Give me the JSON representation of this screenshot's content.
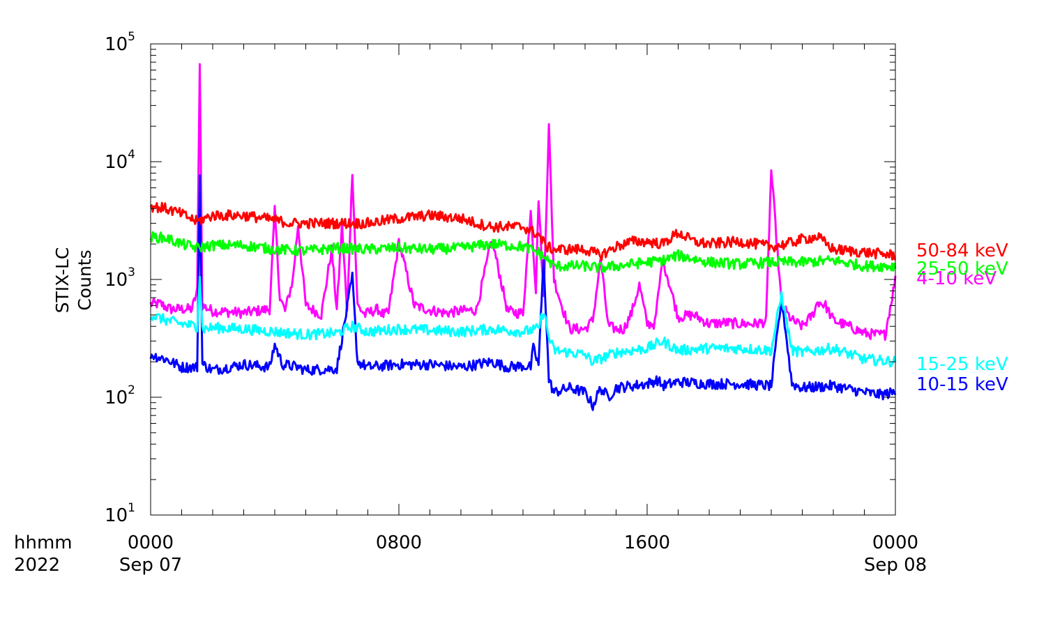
{
  "chart_data": {
    "type": "line",
    "ylabel_lines": [
      "STIX-LC",
      "Counts"
    ],
    "yscale": "log",
    "ylim": [
      10,
      100000
    ],
    "y_ticks": [
      {
        "base": "10",
        "exp": "1",
        "value": 10
      },
      {
        "base": "10",
        "exp": "2",
        "value": 100
      },
      {
        "base": "10",
        "exp": "3",
        "value": 1000
      },
      {
        "base": "10",
        "exp": "4",
        "value": 10000
      },
      {
        "base": "10",
        "exp": "5",
        "value": 100000
      }
    ],
    "xlim": [
      "2022-09-07 00:00",
      "2022-09-08 00:00"
    ],
    "x_row_labels": {
      "time": "hhmm",
      "year": "2022"
    },
    "x_ticks": [
      {
        "time": "0000",
        "date": "Sep 07",
        "value": "2022-09-07 00:00"
      },
      {
        "time": "0800",
        "date": "",
        "value": "2022-09-07 08:00"
      },
      {
        "time": "1600",
        "date": "",
        "value": "2022-09-07 16:00"
      },
      {
        "time": "0000",
        "date": "Sep 08",
        "value": "2022-09-08 00:00"
      }
    ],
    "grid": false,
    "legend_placement": "right",
    "series": [
      {
        "name": "4-10 keV",
        "color": "#ff00ff",
        "x": [
          "2022-09-07 00:00",
          "2022-09-07 00:20",
          "2022-09-07 00:30",
          "2022-09-07 00:40",
          "2022-09-07 01:00",
          "2022-09-07 01:20",
          "2022-09-07 01:30",
          "2022-09-07 01:35",
          "2022-09-07 01:40",
          "2022-09-07 02:00",
          "2022-09-07 03:00",
          "2022-09-07 03:50",
          "2022-09-07 04:00",
          "2022-09-07 04:10",
          "2022-09-07 04:20",
          "2022-09-07 04:35",
          "2022-09-07 04:45",
          "2022-09-07 05:00",
          "2022-09-07 05:30",
          "2022-09-07 05:50",
          "2022-09-07 06:00",
          "2022-09-07 06:10",
          "2022-09-07 06:20",
          "2022-09-07 06:30",
          "2022-09-07 06:40",
          "2022-09-07 06:55",
          "2022-09-07 07:00",
          "2022-09-07 07:20",
          "2022-09-07 07:30",
          "2022-09-07 07:40",
          "2022-09-07 08:00",
          "2022-09-07 08:30",
          "2022-09-07 09:00",
          "2022-09-07 09:30",
          "2022-09-07 10:00",
          "2022-09-07 10:30",
          "2022-09-07 11:00",
          "2022-09-07 11:30",
          "2022-09-07 11:50",
          "2022-09-07 12:00",
          "2022-09-07 12:15",
          "2022-09-07 12:25",
          "2022-09-07 12:30",
          "2022-09-07 12:40",
          "2022-09-07 12:50",
          "2022-09-07 13:00",
          "2022-09-07 13:15",
          "2022-09-07 13:30",
          "2022-09-07 14:00",
          "2022-09-07 14:15",
          "2022-09-07 14:30",
          "2022-09-07 14:45",
          "2022-09-07 15:00",
          "2022-09-07 15:15",
          "2022-09-07 15:30",
          "2022-09-07 15:45",
          "2022-09-07 16:00",
          "2022-09-07 16:15",
          "2022-09-07 16:30",
          "2022-09-07 17:00",
          "2022-09-07 17:30",
          "2022-09-07 18:00",
          "2022-09-07 18:30",
          "2022-09-07 19:00",
          "2022-09-07 19:30",
          "2022-09-07 19:50",
          "2022-09-07 20:00",
          "2022-09-07 20:20",
          "2022-09-07 20:40",
          "2022-09-07 21:00",
          "2022-09-07 21:20",
          "2022-09-07 21:30",
          "2022-09-07 21:45",
          "2022-09-07 22:00",
          "2022-09-07 22:30",
          "2022-09-07 23:00",
          "2022-09-07 23:20",
          "2022-09-07 23:40",
          "2022-09-08 00:00"
        ],
        "y": [
          620,
          620,
          580,
          560,
          560,
          560,
          800,
          73000,
          600,
          540,
          520,
          560,
          3800,
          700,
          540,
          1000,
          2900,
          600,
          500,
          1800,
          550,
          2900,
          520,
          8500,
          600,
          500,
          520,
          560,
          500,
          520,
          2100,
          600,
          550,
          520,
          540,
          550,
          2200,
          540,
          520,
          520,
          4000,
          800,
          5000,
          700,
          20000,
          1000,
          600,
          380,
          380,
          450,
          1500,
          400,
          380,
          380,
          520,
          900,
          420,
          420,
          1500,
          480,
          500,
          420,
          430,
          420,
          420,
          440,
          8500,
          600,
          450,
          400,
          500,
          650,
          600,
          450,
          400,
          350,
          340,
          340,
          1000
        ]
      },
      {
        "name": "10-15 keV",
        "color": "#0000ff",
        "x": [
          "2022-09-07 00:00",
          "2022-09-07 00:30",
          "2022-09-07 01:00",
          "2022-09-07 01:30",
          "2022-09-07 01:35",
          "2022-09-07 01:40",
          "2022-09-07 02:00",
          "2022-09-07 03:00",
          "2022-09-07 03:50",
          "2022-09-07 04:00",
          "2022-09-07 04:15",
          "2022-09-07 04:45",
          "2022-09-07 05:00",
          "2022-09-07 06:00",
          "2022-09-07 06:30",
          "2022-09-07 06:40",
          "2022-09-07 07:00",
          "2022-09-07 08:00",
          "2022-09-07 09:00",
          "2022-09-07 10:00",
          "2022-09-07 11:00",
          "2022-09-07 11:30",
          "2022-09-07 12:00",
          "2022-09-07 12:15",
          "2022-09-07 12:20",
          "2022-09-07 12:30",
          "2022-09-07 12:40",
          "2022-09-07 12:50",
          "2022-09-07 13:00",
          "2022-09-07 13:30",
          "2022-09-07 14:00",
          "2022-09-07 14:15",
          "2022-09-07 14:30",
          "2022-09-07 14:45",
          "2022-09-07 15:00",
          "2022-09-07 16:00",
          "2022-09-07 16:20",
          "2022-09-07 16:30",
          "2022-09-07 17:00",
          "2022-09-07 18:00",
          "2022-09-07 19:00",
          "2022-09-07 20:00",
          "2022-09-07 20:20",
          "2022-09-07 20:40",
          "2022-09-07 21:00",
          "2022-09-07 22:00",
          "2022-09-07 23:00",
          "2022-09-07 23:30",
          "2022-09-08 00:00"
        ],
        "y": [
          230,
          210,
          180,
          180,
          7500,
          190,
          170,
          190,
          180,
          280,
          190,
          180,
          170,
          175,
          1050,
          200,
          180,
          190,
          190,
          180,
          200,
          180,
          185,
          180,
          260,
          190,
          1500,
          140,
          110,
          120,
          110,
          85,
          120,
          100,
          120,
          130,
          140,
          125,
          135,
          130,
          130,
          125,
          700,
          130,
          120,
          125,
          110,
          105,
          110
        ]
      },
      {
        "name": "15-25 keV",
        "color": "#00ffff",
        "x": [
          "2022-09-07 00:00",
          "2022-09-07 00:30",
          "2022-09-07 01:00",
          "2022-09-07 01:30",
          "2022-09-07 01:35",
          "2022-09-07 01:40",
          "2022-09-07 02:00",
          "2022-09-07 03:00",
          "2022-09-07 04:00",
          "2022-09-07 05:00",
          "2022-09-07 06:00",
          "2022-09-07 06:30",
          "2022-09-07 07:00",
          "2022-09-07 08:00",
          "2022-09-07 09:00",
          "2022-09-07 10:00",
          "2022-09-07 11:00",
          "2022-09-07 12:00",
          "2022-09-07 12:30",
          "2022-09-07 12:40",
          "2022-09-07 12:50",
          "2022-09-07 13:00",
          "2022-09-07 14:00",
          "2022-09-07 14:15",
          "2022-09-07 15:00",
          "2022-09-07 16:00",
          "2022-09-07 16:30",
          "2022-09-07 17:00",
          "2022-09-07 18:00",
          "2022-09-07 19:00",
          "2022-09-07 20:00",
          "2022-09-07 20:20",
          "2022-09-07 20:40",
          "2022-09-07 21:00",
          "2022-09-07 22:00",
          "2022-09-07 23:00",
          "2022-09-08 00:00"
        ],
        "y": [
          500,
          450,
          420,
          400,
          1100,
          380,
          390,
          380,
          360,
          340,
          350,
          400,
          360,
          380,
          370,
          360,
          380,
          360,
          380,
          550,
          320,
          250,
          230,
          200,
          240,
          260,
          300,
          250,
          260,
          260,
          250,
          750,
          250,
          240,
          260,
          210,
          200
        ]
      },
      {
        "name": "25-50 keV",
        "color": "#00ff00",
        "x": [
          "2022-09-07 00:00",
          "2022-09-07 00:30",
          "2022-09-07 01:00",
          "2022-09-07 01:30",
          "2022-09-07 02:00",
          "2022-09-07 03:00",
          "2022-09-07 04:00",
          "2022-09-07 05:00",
          "2022-09-07 06:00",
          "2022-09-07 07:00",
          "2022-09-07 08:00",
          "2022-09-07 09:00",
          "2022-09-07 10:00",
          "2022-09-07 11:00",
          "2022-09-07 12:00",
          "2022-09-07 12:30",
          "2022-09-07 12:45",
          "2022-09-07 13:00",
          "2022-09-07 14:00",
          "2022-09-07 14:30",
          "2022-09-07 15:00",
          "2022-09-07 16:00",
          "2022-09-07 16:30",
          "2022-09-07 17:00",
          "2022-09-07 18:00",
          "2022-09-07 19:00",
          "2022-09-07 20:00",
          "2022-09-07 21:00",
          "2022-09-07 22:00",
          "2022-09-07 23:00",
          "2022-09-08 00:00"
        ],
        "y": [
          2300,
          2250,
          2000,
          1850,
          1950,
          1950,
          1800,
          1750,
          1850,
          1800,
          1850,
          1800,
          1850,
          2000,
          1900,
          1700,
          1500,
          1300,
          1300,
          1250,
          1300,
          1400,
          1450,
          1600,
          1400,
          1350,
          1400,
          1400,
          1450,
          1300,
          1300
        ]
      },
      {
        "name": "50-84 keV",
        "color": "#ff0000",
        "x": [
          "2022-09-07 00:00",
          "2022-09-07 00:30",
          "2022-09-07 01:00",
          "2022-09-07 01:30",
          "2022-09-07 02:00",
          "2022-09-07 03:00",
          "2022-09-07 04:00",
          "2022-09-07 04:30",
          "2022-09-07 05:00",
          "2022-09-07 06:00",
          "2022-09-07 07:00",
          "2022-09-07 08:00",
          "2022-09-07 09:00",
          "2022-09-07 10:00",
          "2022-09-07 10:30",
          "2022-09-07 11:00",
          "2022-09-07 12:00",
          "2022-09-07 12:30",
          "2022-09-07 12:45",
          "2022-09-07 13:00",
          "2022-09-07 14:00",
          "2022-09-07 14:30",
          "2022-09-07 15:00",
          "2022-09-07 15:30",
          "2022-09-07 16:00",
          "2022-09-07 16:30",
          "2022-09-07 17:00",
          "2022-09-07 17:30",
          "2022-09-07 18:00",
          "2022-09-07 19:00",
          "2022-09-07 20:00",
          "2022-09-07 20:30",
          "2022-09-07 21:00",
          "2022-09-07 21:30",
          "2022-09-07 22:00",
          "2022-09-07 23:00",
          "2022-09-08 00:00"
        ],
        "y": [
          4200,
          4000,
          3600,
          3100,
          3500,
          3500,
          3200,
          3000,
          3000,
          3000,
          3000,
          3300,
          3500,
          3300,
          3000,
          2800,
          2800,
          2400,
          1900,
          1800,
          1800,
          1600,
          1900,
          2100,
          2100,
          2000,
          2500,
          2100,
          2000,
          2100,
          1900,
          2000,
          2200,
          2300,
          1800,
          1700,
          1600
        ]
      }
    ]
  }
}
